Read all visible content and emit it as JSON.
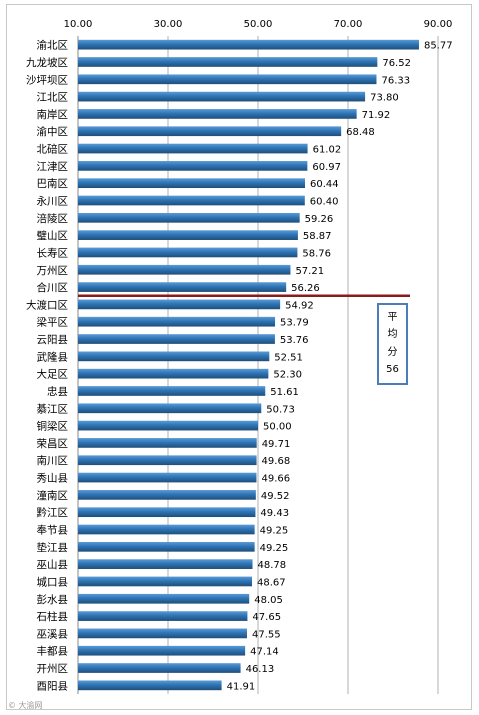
{
  "chart_data": {
    "type": "bar",
    "orientation": "horizontal",
    "title": "",
    "xlabel": "",
    "ylabel": "",
    "xlim": [
      10,
      90
    ],
    "x_ticks": [
      "10.00",
      "30.00",
      "50.00",
      "70.00",
      "90.00"
    ],
    "grid": true,
    "bar_color": "#2e75b6",
    "categories": [
      "渝北区",
      "九龙坡区",
      "沙坪坝区",
      "江北区",
      "南岸区",
      "渝中区",
      "北碚区",
      "江津区",
      "巴南区",
      "永川区",
      "涪陵区",
      "璧山区",
      "长寿区",
      "万州区",
      "合川区",
      "大渡口区",
      "梁平区",
      "云阳县",
      "武隆县",
      "大足区",
      "忠县",
      "綦江区",
      "铜梁区",
      "荣昌区",
      "南川区",
      "秀山县",
      "潼南区",
      "黔江区",
      "奉节县",
      "垫江县",
      "巫山县",
      "城口县",
      "彭水县",
      "石柱县",
      "巫溪县",
      "丰都县",
      "开州区",
      "酉阳县"
    ],
    "values": [
      85.77,
      76.52,
      76.33,
      73.8,
      71.92,
      68.48,
      61.02,
      60.97,
      60.44,
      60.4,
      59.26,
      58.87,
      58.76,
      57.21,
      56.26,
      54.92,
      53.79,
      53.76,
      52.51,
      52.3,
      51.61,
      50.73,
      50.0,
      49.71,
      49.68,
      49.66,
      49.52,
      49.43,
      49.25,
      49.25,
      48.78,
      48.67,
      48.05,
      47.65,
      47.55,
      47.14,
      46.13,
      41.91
    ],
    "value_labels": [
      "85.77",
      "76.52",
      "76.33",
      "73.80",
      "71.92",
      "68.48",
      "61.02",
      "60.97",
      "60.44",
      "60.40",
      "59.26",
      "58.87",
      "58.76",
      "57.21",
      "56.26",
      "54.92",
      "53.79",
      "53.76",
      "52.51",
      "52.30",
      "51.61",
      "50.73",
      "50.00",
      "49.71",
      "49.68",
      "49.66",
      "49.52",
      "49.43",
      "49.25",
      "49.25",
      "48.78",
      "48.67",
      "48.05",
      "47.65",
      "47.55",
      "47.14",
      "46.13",
      "41.91"
    ],
    "average_line": {
      "value": 56,
      "color": "#8b1a1a"
    },
    "average_annotation": [
      "平",
      "均",
      "分",
      "56"
    ]
  },
  "watermark": "© 大渝网"
}
